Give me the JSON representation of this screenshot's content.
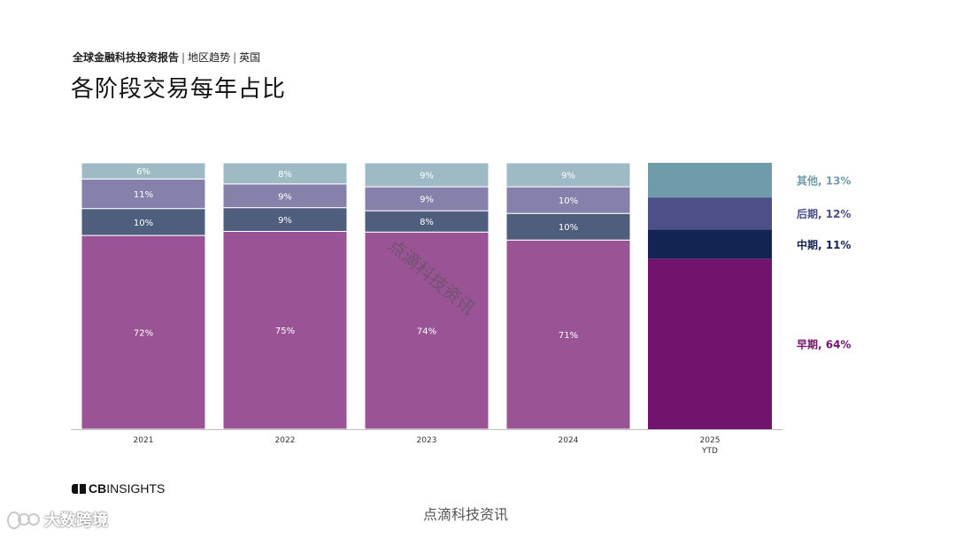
{
  "header": {
    "report_name": "全球金融科技投资报告",
    "section": "地区趋势",
    "region": "英国",
    "separator": "|",
    "title": "各阶段交易每年占比"
  },
  "chart_data": {
    "type": "bar",
    "stacked": true,
    "normalized": true,
    "categories": [
      "2021",
      "2022",
      "2023",
      "2024",
      "2025\nYTD"
    ],
    "series": [
      {
        "name": "早期",
        "values": [
          72,
          75,
          74,
          71,
          64
        ],
        "color": "#9a5496",
        "color_highlight": "#72136e"
      },
      {
        "name": "中期",
        "values": [
          10,
          9,
          8,
          10,
          11
        ],
        "color": "#4f5e7d",
        "color_highlight": "#142452"
      },
      {
        "name": "后期",
        "values": [
          11,
          9,
          9,
          10,
          12
        ],
        "color": "#8581ab",
        "color_highlight": "#4d5088"
      },
      {
        "name": "其他",
        "values": [
          6,
          8,
          9,
          9,
          13
        ],
        "color": "#9ebbc5",
        "color_highlight": "#6f9bab"
      }
    ],
    "data_labels": [
      [
        "72%",
        "75%",
        "74%",
        "71%",
        null
      ],
      [
        "10%",
        "9%",
        "8%",
        "10%",
        null
      ],
      [
        "11%",
        "9%",
        "9%",
        "10%",
        null
      ],
      [
        "6%",
        "8%",
        "9%",
        "9%",
        null
      ]
    ],
    "legend": [
      {
        "label": "其他, 13%",
        "color": "#6f9bab"
      },
      {
        "label": "后期, 12%",
        "color": "#4d5088"
      },
      {
        "label": "中期, 11%",
        "color": "#142452"
      },
      {
        "label": "早期, 64%",
        "color": "#72136e"
      }
    ],
    "legend_position": "right",
    "grid": false,
    "ylim": [
      0,
      100
    ]
  },
  "footer": {
    "logo_prefix": "CB",
    "logo_suffix": "INSIGHTS",
    "watermark_bottom": "点滴科技资讯",
    "watermark_diagonal": "点滴科技资讯",
    "watermark_corner": "大数跨境"
  }
}
